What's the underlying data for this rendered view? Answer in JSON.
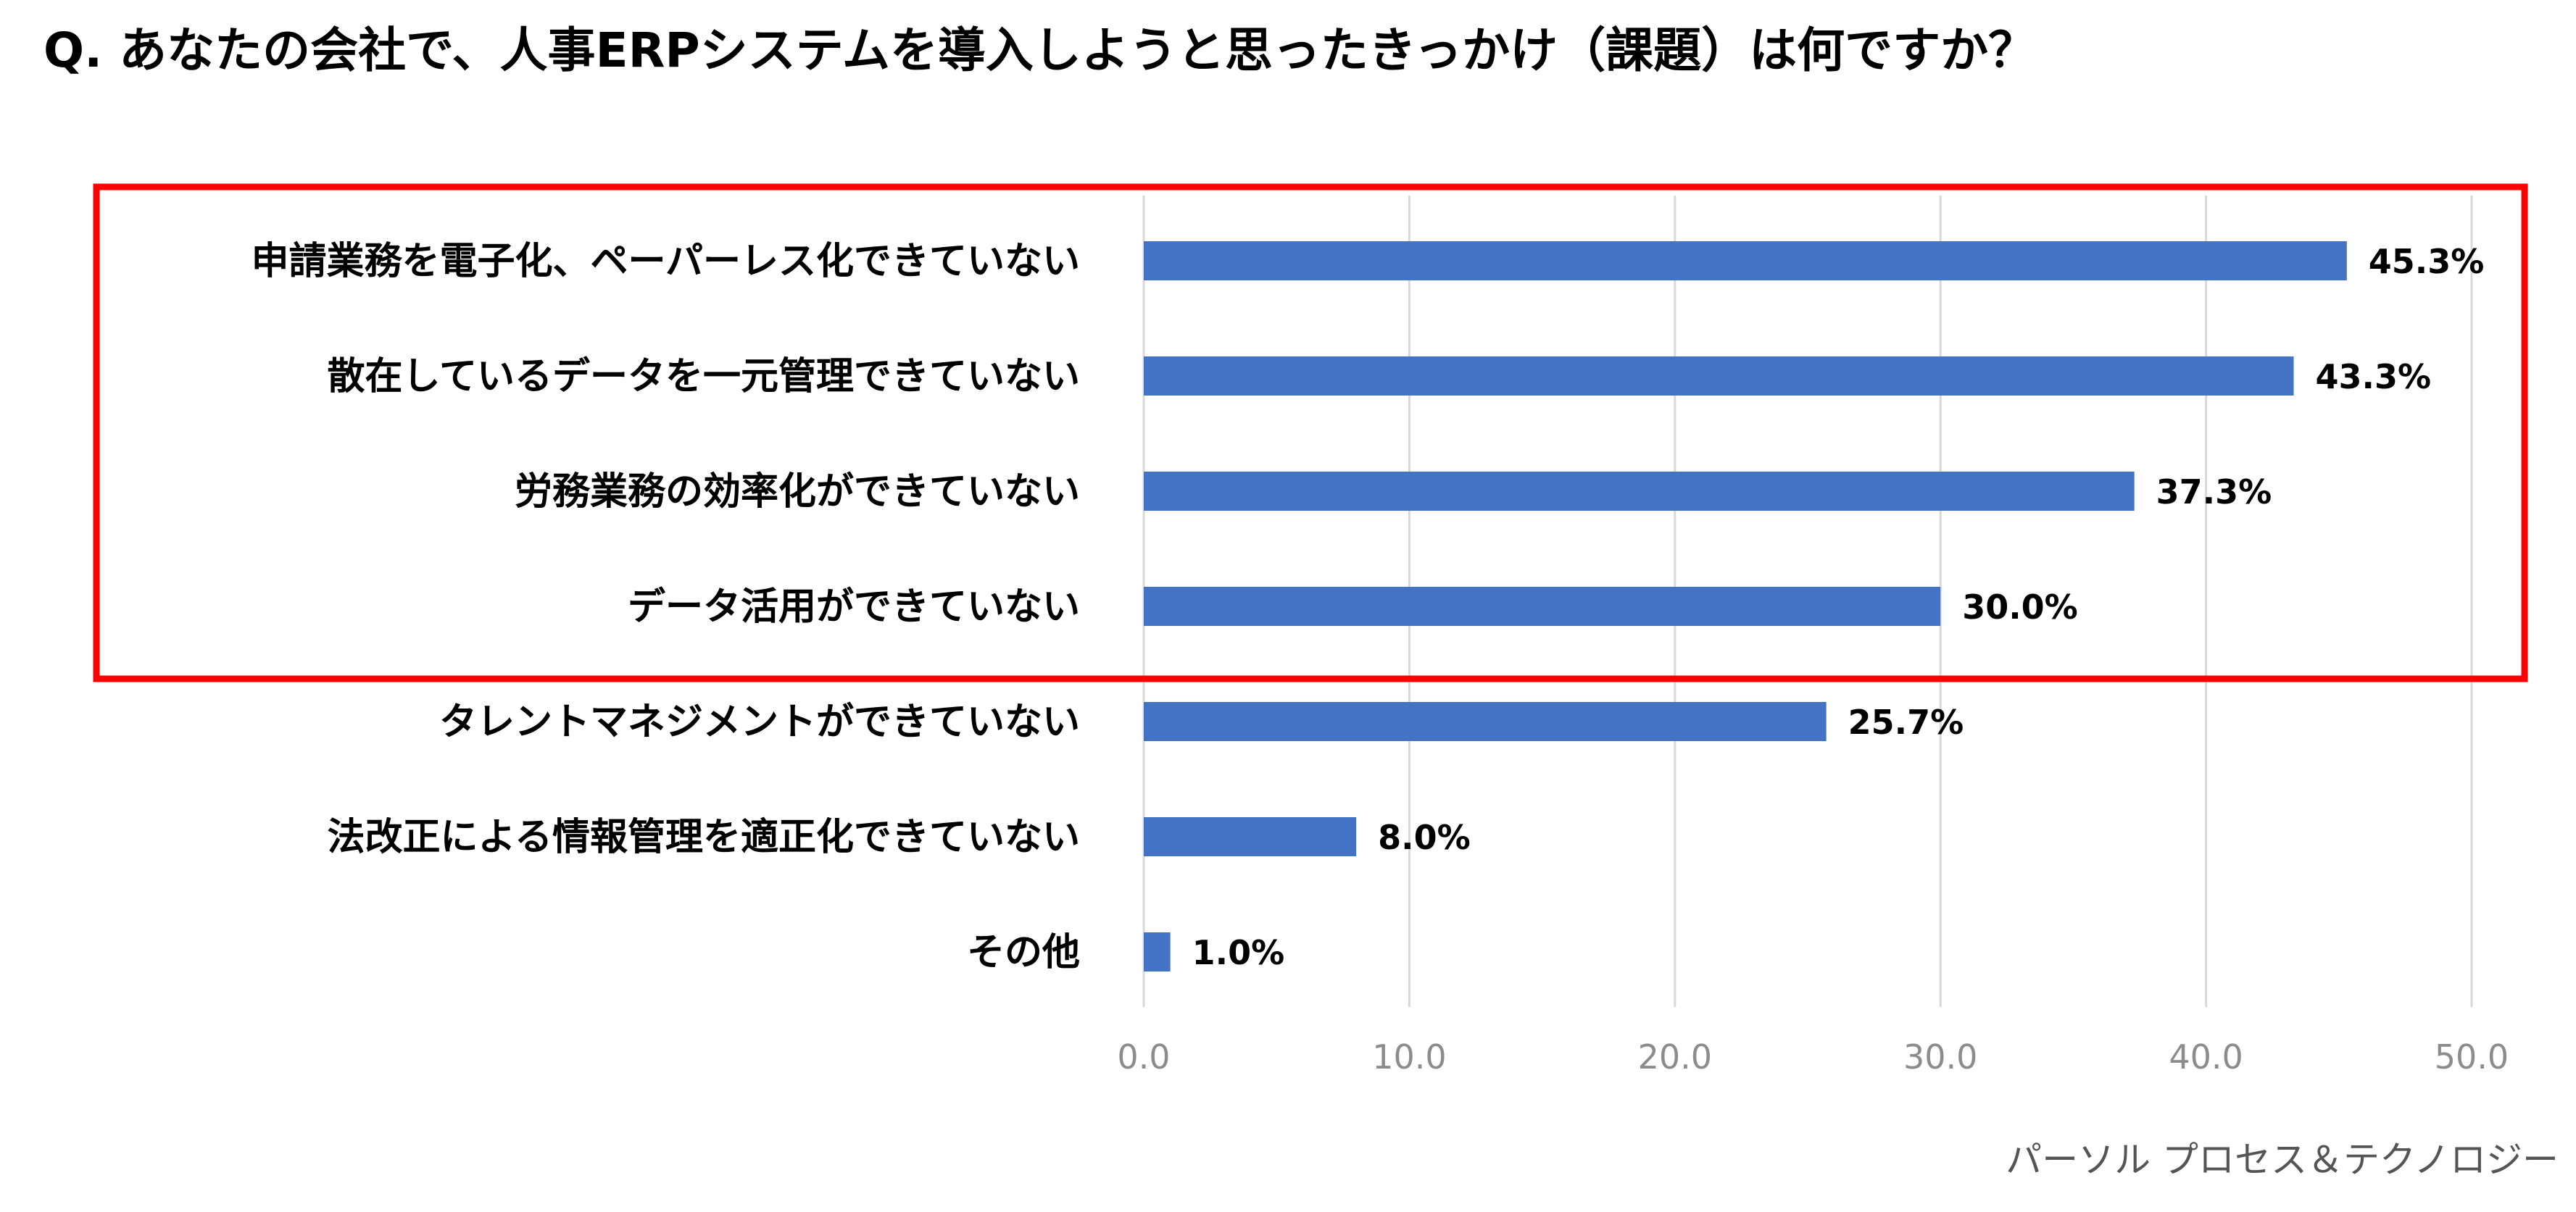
{
  "header": {
    "title": "Q. あなたの会社で、人事ERPシステムを導入しようと思ったきっかけ（課題）は何ですか？"
  },
  "footer": {
    "source": "パーソル プロセス＆テクノロジー"
  },
  "colors": {
    "bar": "#4472c4",
    "highlight": "#ff0000",
    "grid": "#d9d9d9"
  },
  "chart_data": {
    "type": "bar",
    "orientation": "horizontal",
    "title": "Q. あなたの会社で、人事ERPシステムを導入しようと思ったきっかけ（課題）は何ですか？",
    "categories": [
      "申請業務を電子化、ペーパーレス化できていない",
      "散在しているデータを一元管理できていない",
      "労務業務の効率化ができていない",
      "データ活用ができていない",
      "タレントマネジメントができていない",
      "法改正による情報管理を適正化できていない",
      "その他"
    ],
    "values": [
      45.3,
      43.3,
      37.3,
      30.0,
      25.7,
      8.0,
      1.0
    ],
    "value_labels": [
      "45.3%",
      "43.3%",
      "37.3%",
      "30.0%",
      "25.7%",
      "8.0%",
      "1.0%"
    ],
    "xlim": [
      0,
      50
    ],
    "xticks": [
      0,
      10,
      20,
      30,
      40,
      50
    ],
    "xtick_labels": [
      "0.0",
      "10.0",
      "20.0",
      "30.0",
      "40.0",
      "50.0"
    ],
    "grid": "vertical",
    "highlighted_categories": [
      0,
      1,
      2,
      3
    ]
  }
}
